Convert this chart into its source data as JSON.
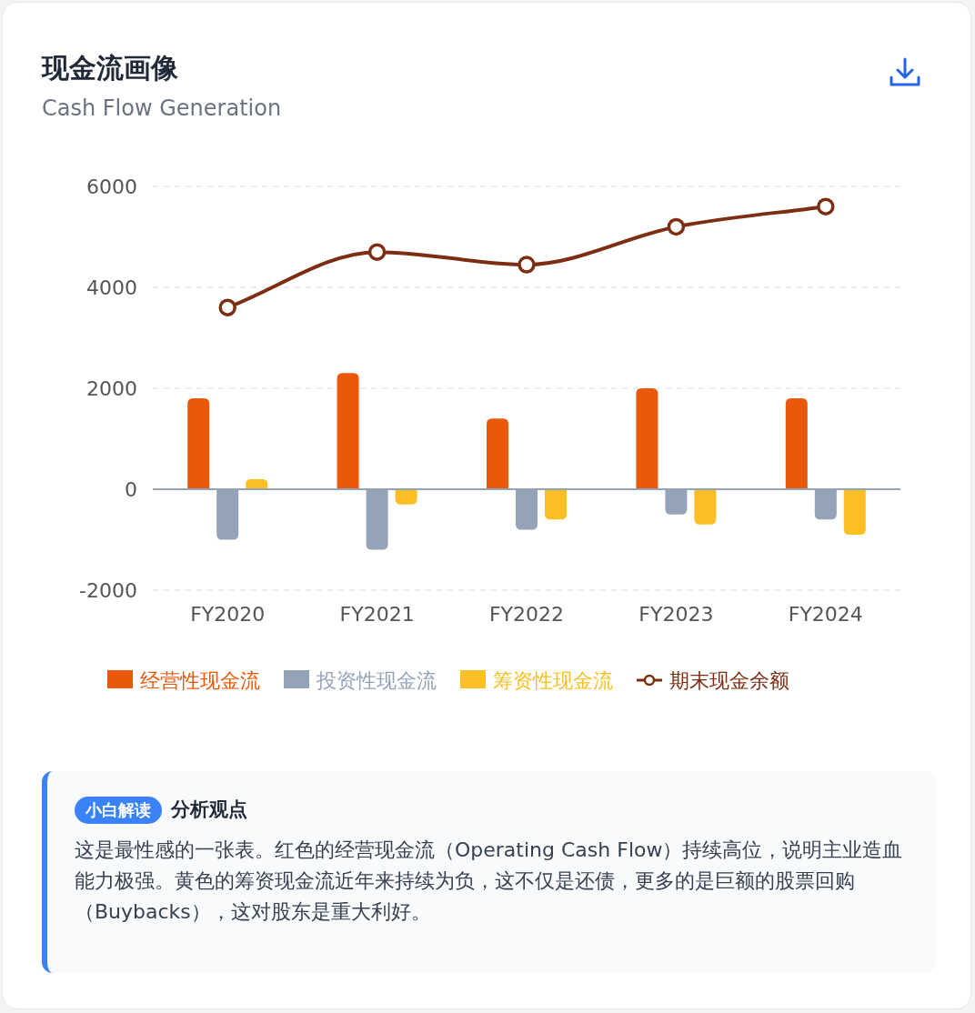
{
  "chart_data": {
    "type": "bar",
    "title": "现金流画像",
    "subtitle": "Cash Flow Generation",
    "categories": [
      "FY2020",
      "FY2021",
      "FY2022",
      "FY2023",
      "FY2024"
    ],
    "series": [
      {
        "name": "经营性现金流",
        "color": "#ea580c",
        "values": [
          1800,
          2300,
          1400,
          2000,
          1800
        ]
      },
      {
        "name": "投资性现金流",
        "color": "#94a3b8",
        "values": [
          -1000,
          -1200,
          -800,
          -500,
          -600
        ]
      },
      {
        "name": "筹资性现金流",
        "color": "#fbbf24",
        "values": [
          200,
          -300,
          -600,
          -700,
          -900
        ]
      },
      {
        "name": "期末现金余额",
        "type": "line",
        "color": "#7c2d12",
        "values": [
          3600,
          4700,
          4450,
          5200,
          5600
        ]
      }
    ],
    "ylim": [
      -2000,
      6000
    ],
    "yticks": [
      -2000,
      0,
      2000,
      4000,
      6000
    ],
    "grid": "y",
    "legend": "bottom",
    "marker": "circle",
    "line_style": "solid",
    "annotations": [
      "小白解读",
      "分析观点",
      "这是最性感的一张表。红色的经营现金流（Operating Cash Flow）持续高位，说明主业造血能力极强。黄色的筹资现金流近年来持续为负，这不仅是还债，更多的是巨额的股票回购（Buybacks），这对股东是重大利好。"
    ]
  }
}
